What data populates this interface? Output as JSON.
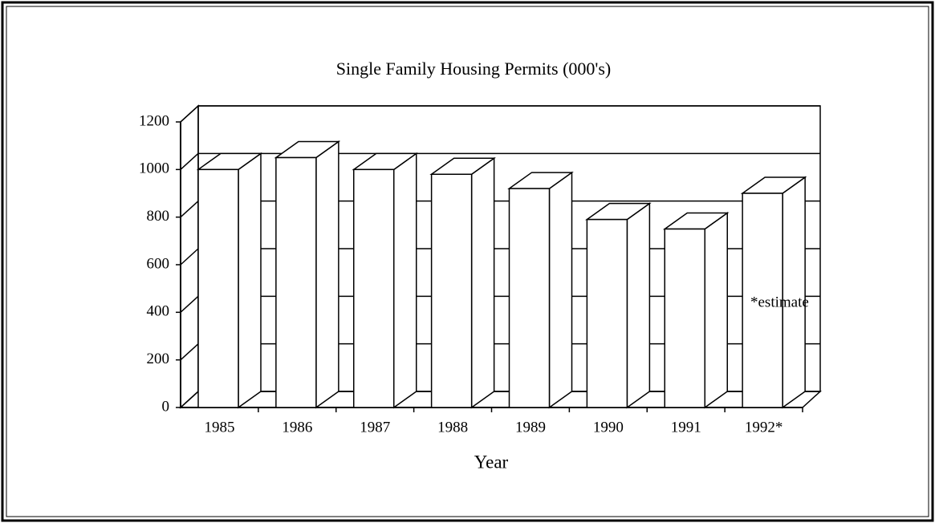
{
  "chart_data": {
    "type": "bar3d",
    "title": "Single Family Housing Permits (000's)",
    "x_label": "Year",
    "categories": [
      "1985",
      "1986",
      "1987",
      "1988",
      "1989",
      "1990",
      "1991",
      "1992*"
    ],
    "values": [
      1000,
      1050,
      1000,
      980,
      920,
      790,
      750,
      900
    ],
    "color": "#ffffff",
    "ylim": [
      0,
      1200
    ],
    "yticks": [
      0,
      200,
      400,
      600,
      800,
      1000,
      1200
    ],
    "grid": true,
    "annotation": "*estimate"
  }
}
